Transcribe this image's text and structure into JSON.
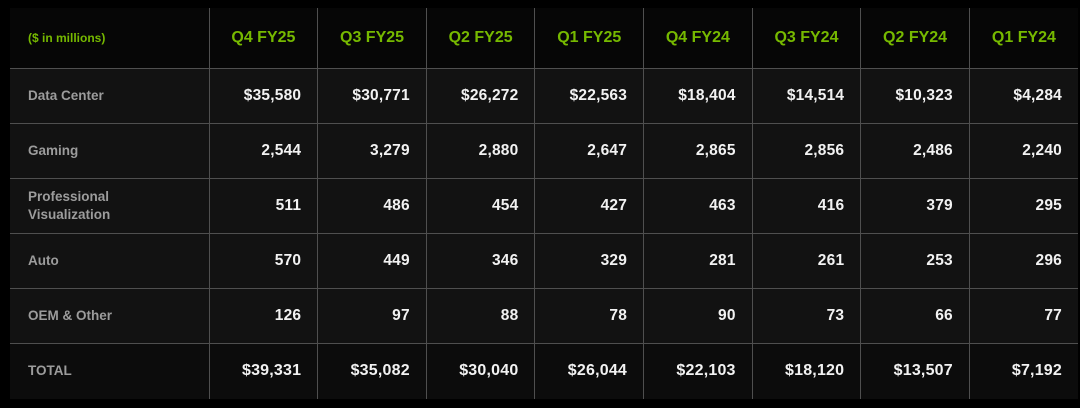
{
  "colors": {
    "accent_green": "#76b900",
    "label_gray": "#9c9c9c",
    "value_white": "#f2f2f2",
    "grid": "#4f4f4f"
  },
  "table": {
    "unit_label": "($ in millions)",
    "columns": [
      "Q4 FY25",
      "Q3 FY25",
      "Q2 FY25",
      "Q1 FY25",
      "Q4 FY24",
      "Q3 FY24",
      "Q2 FY24",
      "Q1 FY24"
    ],
    "rows": [
      {
        "label": "Data Center",
        "values": [
          "$35,580",
          "$30,771",
          "$26,272",
          "$22,563",
          "$18,404",
          "$14,514",
          "$10,323",
          "$4,284"
        ]
      },
      {
        "label": "Gaming",
        "values": [
          "2,544",
          "3,279",
          "2,880",
          "2,647",
          "2,865",
          "2,856",
          "2,486",
          "2,240"
        ]
      },
      {
        "label": "Professional Visualization",
        "values": [
          "511",
          "486",
          "454",
          "427",
          "463",
          "416",
          "379",
          "295"
        ]
      },
      {
        "label": "Auto",
        "values": [
          "570",
          "449",
          "346",
          "329",
          "281",
          "261",
          "253",
          "296"
        ]
      },
      {
        "label": "OEM & Other",
        "values": [
          "126",
          "97",
          "88",
          "78",
          "90",
          "73",
          "66",
          "77"
        ]
      }
    ],
    "total": {
      "label": "TOTAL",
      "values": [
        "$39,331",
        "$35,082",
        "$30,040",
        "$26,044",
        "$22,103",
        "$18,120",
        "$13,507",
        "$7,192"
      ]
    }
  },
  "chart_data": {
    "type": "table",
    "title": "Revenue by segment ($ in millions)",
    "columns": [
      "Q4 FY25",
      "Q3 FY25",
      "Q2 FY25",
      "Q1 FY25",
      "Q4 FY24",
      "Q3 FY24",
      "Q2 FY24",
      "Q1 FY24"
    ],
    "rows": [
      {
        "name": "Data Center",
        "values": [
          35580,
          30771,
          26272,
          22563,
          18404,
          14514,
          10323,
          4284
        ]
      },
      {
        "name": "Gaming",
        "values": [
          2544,
          3279,
          2880,
          2647,
          2865,
          2856,
          2486,
          2240
        ]
      },
      {
        "name": "Professional Visualization",
        "values": [
          511,
          486,
          454,
          427,
          463,
          416,
          379,
          295
        ]
      },
      {
        "name": "Auto",
        "values": [
          570,
          449,
          346,
          329,
          281,
          261,
          253,
          296
        ]
      },
      {
        "name": "OEM & Other",
        "values": [
          126,
          97,
          88,
          78,
          90,
          73,
          66,
          77
        ]
      }
    ],
    "total": {
      "name": "TOTAL",
      "values": [
        39331,
        35082,
        30040,
        26044,
        22103,
        18120,
        13507,
        7192
      ]
    }
  }
}
